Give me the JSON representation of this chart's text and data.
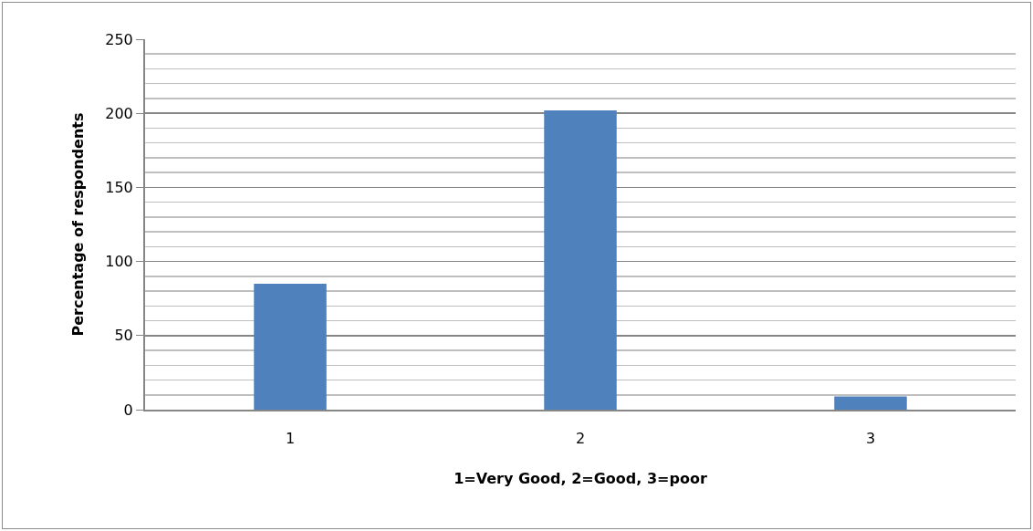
{
  "chart_data": {
    "type": "bar",
    "xlabel": "1=Very Good, 2=Good, 3=poor",
    "ylabel": "Percentage of respondents",
    "categories": [
      "1",
      "2",
      "3"
    ],
    "values": [
      85,
      202,
      9
    ],
    "color": "#4f81bd",
    "ylim": [
      0,
      250
    ],
    "yticks": [
      0,
      {
        "value": 10,
        "label": null
      },
      {
        "value": 20,
        "label": null
      },
      {
        "value": 30,
        "label": null
      },
      {
        "value": 40,
        "label": null
      },
      50,
      {
        "value": 60,
        "label": null
      },
      {
        "value": 70,
        "label": null
      },
      {
        "value": 80,
        "label": null
      },
      {
        "value": 90,
        "label": null
      },
      100,
      {
        "value": 110,
        "label": null
      },
      {
        "value": 120,
        "label": null
      },
      {
        "value": 130,
        "label": null
      },
      {
        "value": 140,
        "label": null
      },
      150,
      {
        "value": 160,
        "label": null
      },
      {
        "value": 170,
        "label": null
      },
      {
        "value": 180,
        "label": null
      },
      {
        "value": 190,
        "label": null
      },
      200,
      {
        "value": 210,
        "label": null
      },
      {
        "value": 220,
        "label": null
      },
      {
        "value": 230,
        "label": null
      },
      {
        "value": 240,
        "label": null
      },
      250
    ],
    "grid": "y"
  }
}
